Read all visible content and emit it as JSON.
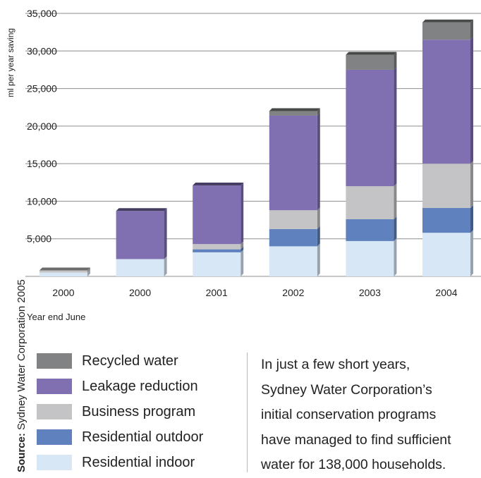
{
  "chart_data": {
    "type": "bar",
    "stacked": true,
    "ylabel": "ml per year saving",
    "xlabel": "Year end June",
    "ylim": [
      0,
      35000
    ],
    "yticks": [
      "35,000",
      "30,000",
      "25,000",
      "20,000",
      "15,000",
      "10,000",
      "5,000"
    ],
    "ytick_values": [
      35000,
      30000,
      25000,
      20000,
      15000,
      10000,
      5000
    ],
    "grid": true,
    "categories": [
      "2000",
      "2000",
      "2001",
      "2002",
      "2003",
      "2004"
    ],
    "series": [
      {
        "name": "Residential indoor",
        "color": "#d8e7f5",
        "values": [
          500,
          2300,
          3200,
          4000,
          4700,
          5800
        ]
      },
      {
        "name": "Residential outdoor",
        "color": "#5f81bd",
        "values": [
          0,
          0,
          400,
          2300,
          2900,
          3300
        ]
      },
      {
        "name": "Business program",
        "color": "#c4c4c6",
        "values": [
          300,
          0,
          700,
          2500,
          4400,
          5900
        ]
      },
      {
        "name": "Leakage reduction",
        "color": "#8070b2",
        "values": [
          0,
          6400,
          7800,
          12600,
          15500,
          16500
        ]
      },
      {
        "name": "Recycled water",
        "color": "#818283",
        "values": [
          0,
          0,
          0,
          600,
          2000,
          2300
        ]
      }
    ]
  },
  "legend": [
    {
      "label": "Recycled water",
      "color": "#818283"
    },
    {
      "label": "Leakage reduction",
      "color": "#8070b2"
    },
    {
      "label": "Business program",
      "color": "#c4c4c6"
    },
    {
      "label": "Residential outdoor",
      "color": "#5f81bd"
    },
    {
      "label": "Residential indoor",
      "color": "#d8e7f5"
    }
  ],
  "caption": {
    "lines": [
      "In just a few short years,",
      "Sydney Water Corporation’s",
      "initial conservation programs",
      "have managed to find sufficient",
      "water for 138,000 households."
    ]
  },
  "source": {
    "label": "Source:",
    "text": " Sydney Water Corporation 2005"
  }
}
